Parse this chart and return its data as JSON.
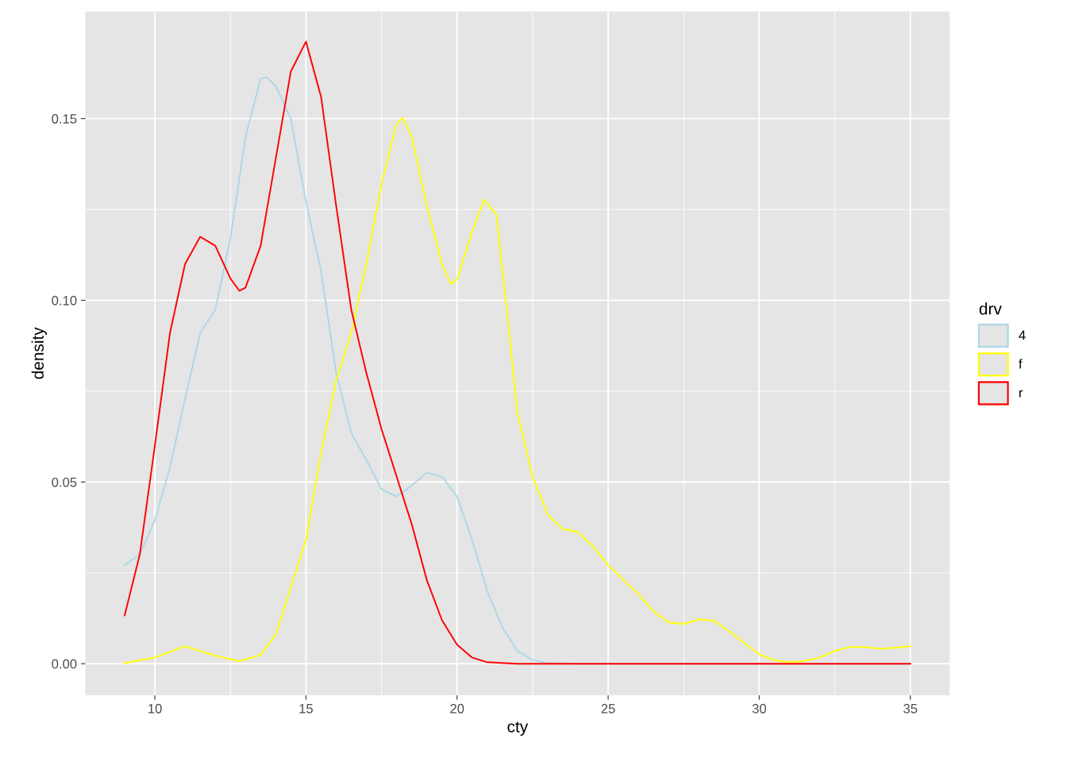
{
  "chart_data": {
    "type": "line",
    "xlabel": "cty",
    "ylabel": "density",
    "legend_title": "drv",
    "legend": "right",
    "grid": true,
    "xlim": [
      7.7,
      36.3
    ],
    "xticks": [
      10,
      15,
      20,
      25,
      30,
      35
    ],
    "ylim": [
      -0.0087,
      0.1795
    ],
    "yticks": [
      {
        "value": 0,
        "label": "0.00"
      },
      {
        "value": 0.05,
        "label": "0.05"
      },
      {
        "value": 0.1,
        "label": "0.10"
      },
      {
        "value": 0.15,
        "label": "0.15"
      }
    ],
    "series": [
      {
        "name": "4",
        "color": "#add8e6",
        "x": [
          9,
          9.5,
          10,
          10.5,
          11,
          11.5,
          12,
          12.5,
          13,
          13.5,
          13.7,
          14,
          14.5,
          15,
          15.5,
          16,
          16.5,
          17,
          17.5,
          18,
          18.5,
          19,
          19.5,
          20,
          20.5,
          21,
          21.5,
          22,
          22.5,
          23,
          24,
          35
        ],
        "values": [
          0.0271,
          0.03,
          0.0395,
          0.054,
          0.073,
          0.091,
          0.0974,
          0.117,
          0.145,
          0.161,
          0.1614,
          0.159,
          0.15,
          0.127,
          0.108,
          0.08,
          0.0635,
          0.056,
          0.048,
          0.046,
          0.049,
          0.0526,
          0.0515,
          0.046,
          0.034,
          0.02,
          0.01,
          0.0035,
          0.001,
          0.0002,
          0,
          0
        ]
      },
      {
        "name": "f",
        "color": "#ffff00",
        "x": [
          9,
          10,
          11,
          12,
          12.8,
          13.5,
          14,
          14.5,
          15,
          15.5,
          16,
          16.5,
          17,
          17.5,
          18,
          18.2,
          18.5,
          19,
          19.5,
          19.8,
          20,
          20.5,
          20.9,
          21.3,
          21.7,
          22,
          22.5,
          23,
          23.5,
          24,
          24.5,
          25,
          25.5,
          26,
          26.5,
          27,
          27.5,
          28,
          28.5,
          29,
          29.5,
          30,
          30.5,
          31,
          31.5,
          32,
          32.5,
          33,
          33.5,
          34,
          34.5,
          35
        ],
        "values": [
          0.0002,
          0.0017,
          0.0048,
          0.0022,
          0.0007,
          0.0024,
          0.008,
          0.021,
          0.034,
          0.058,
          0.078,
          0.091,
          0.11,
          0.132,
          0.1487,
          0.1502,
          0.145,
          0.126,
          0.11,
          0.1044,
          0.1057,
          0.119,
          0.1277,
          0.1236,
          0.093,
          0.069,
          0.0515,
          0.041,
          0.0371,
          0.0362,
          0.0323,
          0.0271,
          0.0231,
          0.0192,
          0.0144,
          0.0114,
          0.0109,
          0.0122,
          0.0118,
          0.009,
          0.0057,
          0.0026,
          0.0009,
          0.0004,
          0.0007,
          0.0017,
          0.0035,
          0.0046,
          0.0046,
          0.0041,
          0.0044,
          0.0048
        ]
      },
      {
        "name": "r",
        "color": "#ff0000",
        "x": [
          9,
          9.5,
          10,
          10.5,
          11,
          11.5,
          12,
          12.5,
          12.8,
          13,
          13.5,
          14,
          14.5,
          15,
          15.5,
          16,
          16.5,
          17,
          17.5,
          18,
          18.5,
          19,
          19.5,
          20,
          20.5,
          21,
          22,
          35
        ],
        "values": [
          0.0133,
          0.03,
          0.06,
          0.091,
          0.11,
          0.1175,
          0.115,
          0.106,
          0.1026,
          0.1035,
          0.115,
          0.139,
          0.163,
          0.1712,
          0.156,
          0.126,
          0.0974,
          0.08,
          0.0646,
          0.0515,
          0.0384,
          0.023,
          0.012,
          0.0052,
          0.0017,
          0.0004,
          0,
          0
        ]
      }
    ]
  }
}
